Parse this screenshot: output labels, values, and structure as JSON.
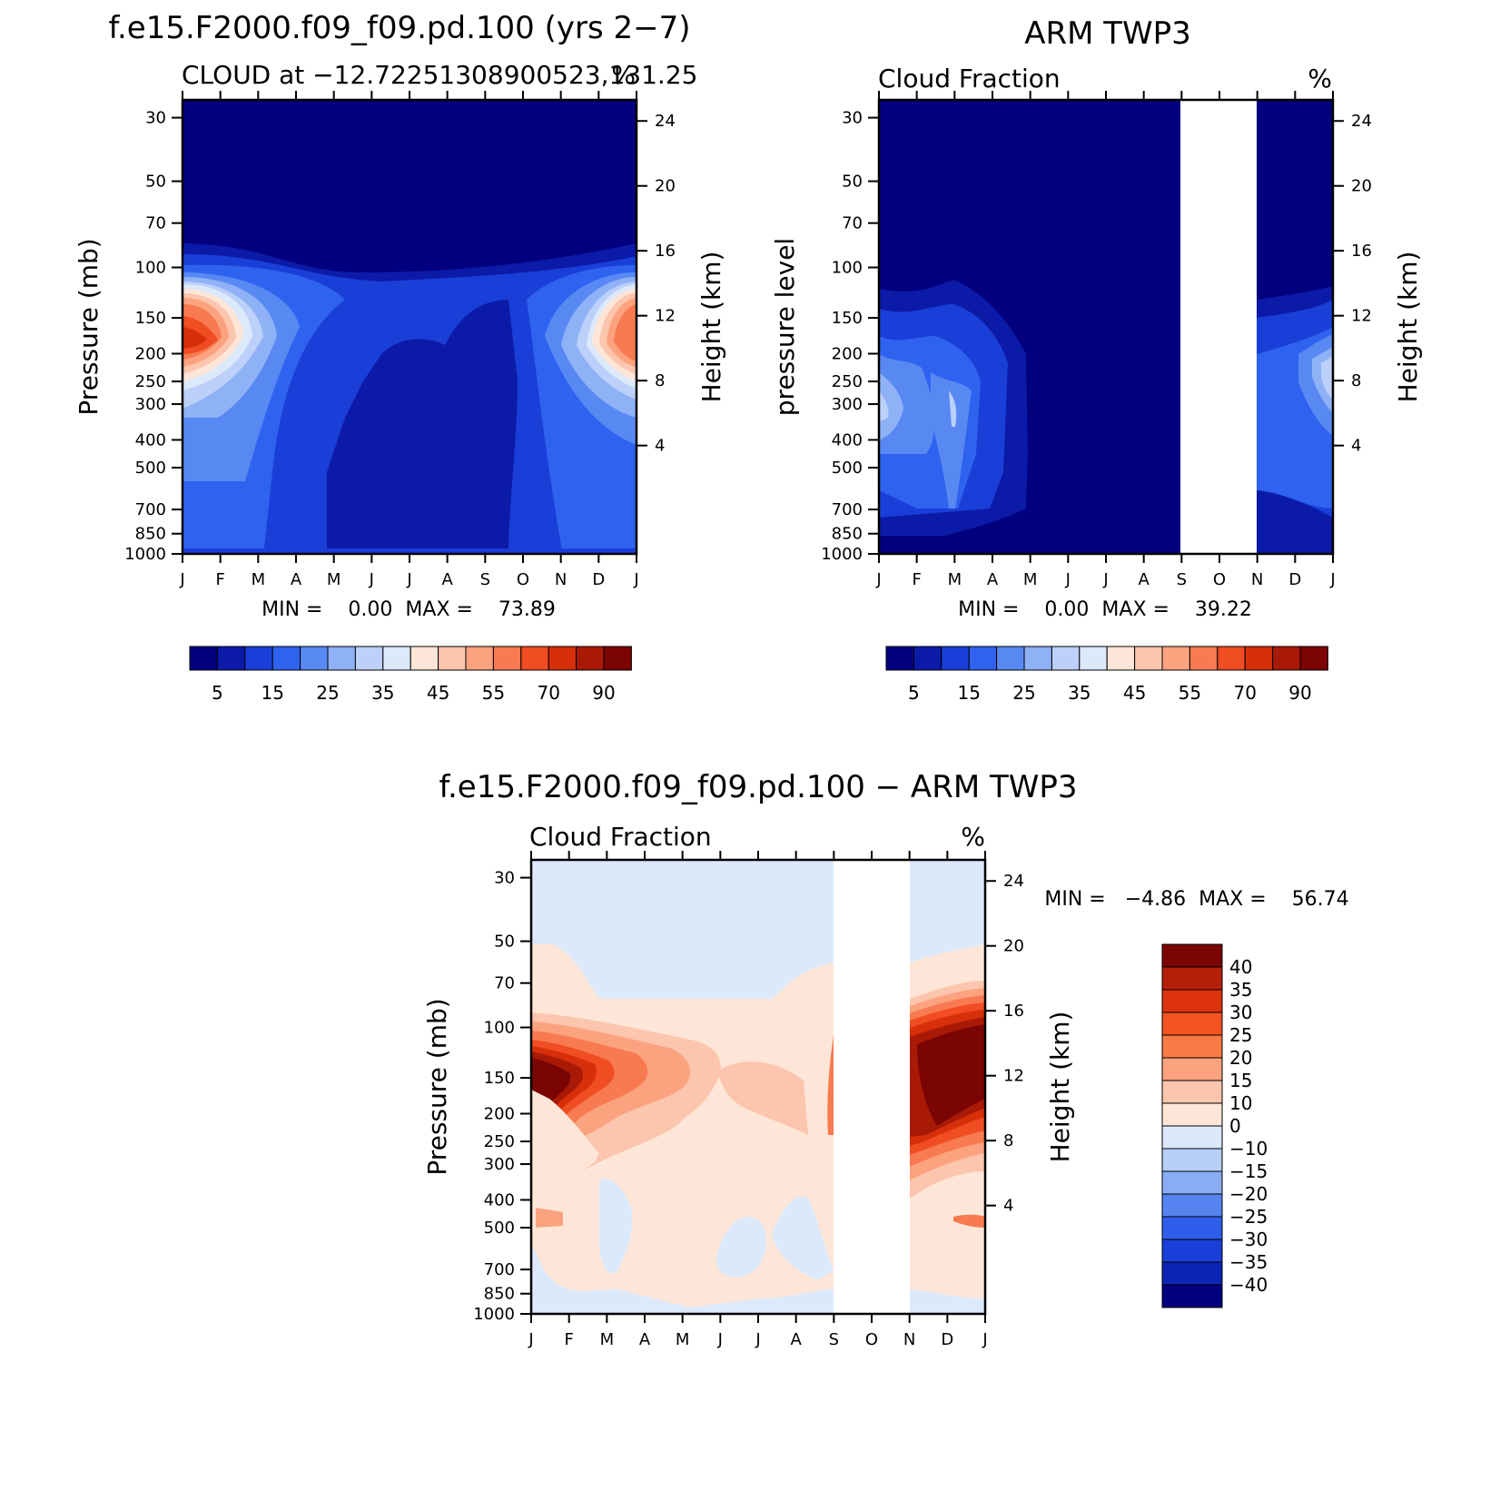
{
  "chart_data": [
    {
      "type": "heatmap",
      "title": "f.e15.F2000.f09_f09.pd.100 (yrs 2−7)",
      "subtitle_left": "CLOUD at −12.72251308900523,131.25",
      "subtitle_right": "%",
      "ylabel_left": "Pressure (mb)",
      "ylabel_right": "Height (km)",
      "x_ticks": [
        "J",
        "F",
        "M",
        "A",
        "M",
        "J",
        "J",
        "A",
        "S",
        "O",
        "N",
        "D",
        "J"
      ],
      "pressure_ticks": [
        30,
        50,
        70,
        100,
        150,
        200,
        250,
        300,
        400,
        500,
        700,
        850,
        1000
      ],
      "height_ticks": [
        24,
        20,
        16,
        12,
        8,
        4
      ],
      "minmax_text": "MIN =    0.00  MAX =    73.89",
      "colorbar_labels": [
        "5",
        "15",
        "25",
        "35",
        "45",
        "55",
        "70",
        "90"
      ],
      "colorbar_colors": [
        "#02007f",
        "#0c1aa8",
        "#1a3fd8",
        "#2f62ef",
        "#5889f3",
        "#8fb1f6",
        "#bcd0f9",
        "#dbe9fb",
        "#fde6d8",
        "#fcc5ad",
        "#fba27f",
        "#f87a50",
        "#f04d22",
        "#d62f0a",
        "#a91a06",
        "#7b0404"
      ],
      "max_value": 73.89
    },
    {
      "type": "heatmap",
      "title": "ARM TWP3",
      "subtitle_left": "Cloud Fraction",
      "subtitle_right": "%",
      "ylabel_left": "pressure level",
      "ylabel_right": "Height (km)",
      "x_ticks": [
        "J",
        "F",
        "M",
        "A",
        "M",
        "J",
        "J",
        "A",
        "S",
        "O",
        "N",
        "D",
        "J"
      ],
      "pressure_ticks": [
        30,
        50,
        70,
        100,
        150,
        200,
        250,
        300,
        400,
        500,
        700,
        850,
        1000
      ],
      "height_ticks": [
        24,
        20,
        16,
        12,
        8,
        4
      ],
      "missing_months": [
        "S",
        "O"
      ],
      "minmax_text": "MIN =    0.00  MAX =    39.22",
      "colorbar_labels": [
        "5",
        "15",
        "25",
        "35",
        "45",
        "55",
        "70",
        "90"
      ],
      "max_value": 39.22
    },
    {
      "type": "heatmap",
      "title": "f.e15.F2000.f09_f09.pd.100 − ARM TWP3",
      "subtitle_left": "Cloud Fraction",
      "subtitle_right": "%",
      "ylabel_left": "Pressure (mb)",
      "ylabel_right": "Height (km)",
      "x_ticks": [
        "J",
        "F",
        "M",
        "A",
        "M",
        "J",
        "J",
        "A",
        "S",
        "O",
        "N",
        "D",
        "J"
      ],
      "pressure_ticks": [
        30,
        50,
        70,
        100,
        150,
        200,
        250,
        300,
        400,
        500,
        700,
        850,
        1000
      ],
      "height_ticks": [
        24,
        20,
        16,
        12,
        8,
        4
      ],
      "missing_months": [
        "S",
        "O"
      ],
      "minmax_text": "MIN =   −4.86  MAX =    56.74",
      "colorbar_labels": [
        "40",
        "35",
        "30",
        "25",
        "20",
        "15",
        "10",
        "0",
        "−10",
        "−15",
        "−20",
        "−25",
        "−30",
        "−35",
        "−40"
      ],
      "colorbar_colors": [
        "#7b0404",
        "#b4200a",
        "#dc3210",
        "#f2541f",
        "#f87a45",
        "#fba27f",
        "#fcc5ad",
        "#fde6d8",
        "#dbe9fb",
        "#b8d0f8",
        "#89adf4",
        "#5583ef",
        "#2e5eeb",
        "#1a3fd8",
        "#0c25b5",
        "#02007f"
      ],
      "max_value": 56.74,
      "min_value": -4.86
    }
  ]
}
